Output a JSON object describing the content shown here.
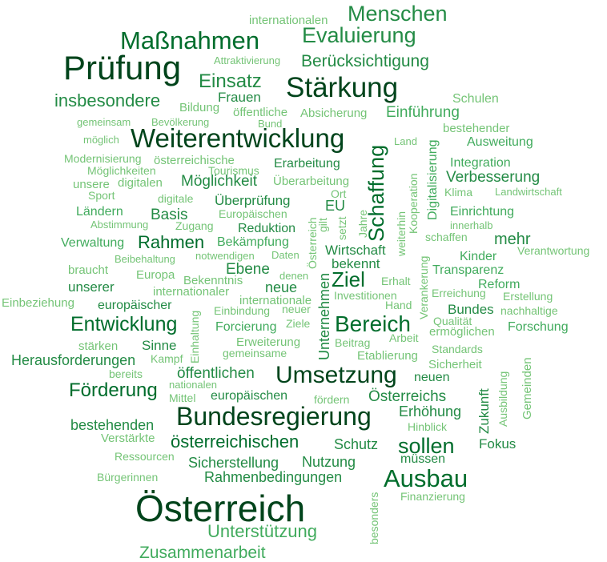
{
  "colors": {
    "c1": "#00441b",
    "c2": "#006d2c",
    "c3": "#238b45",
    "c4": "#41ab5d",
    "c5": "#74c476"
  },
  "words": [
    {
      "text": "Österreich",
      "c": "c1"
    },
    {
      "text": "Prüfung",
      "c": "c1"
    },
    {
      "text": "Bundesregierung",
      "c": "c1"
    },
    {
      "text": "Stärkung",
      "c": "c1"
    },
    {
      "text": "Weiterentwicklung",
      "c": "c1"
    },
    {
      "text": "Umsetzung",
      "c": "c1"
    },
    {
      "text": "Maßnahmen",
      "c": "c2"
    },
    {
      "text": "Ausbau",
      "c": "c2"
    },
    {
      "text": "Bereich",
      "c": "c2"
    },
    {
      "text": "Schaffung",
      "c": "c2"
    },
    {
      "text": "Entwicklung",
      "c": "c2"
    },
    {
      "text": "Förderung",
      "c": "c2"
    },
    {
      "text": "sollen",
      "c": "c2"
    },
    {
      "text": "Menschen",
      "c": "c3"
    },
    {
      "text": "Evaluierung",
      "c": "c3"
    },
    {
      "text": "Einsatz",
      "c": "c3"
    },
    {
      "text": "Berücksichtigung",
      "c": "c3"
    },
    {
      "text": "insbesondere",
      "c": "c3"
    },
    {
      "text": "österreichischen",
      "c": "c2"
    },
    {
      "text": "Rahmen",
      "c": "c2"
    },
    {
      "text": "Ziel",
      "c": "c2"
    },
    {
      "text": "Unterstützung",
      "c": "c4"
    },
    {
      "text": "Zusammenarbeit",
      "c": "c4"
    },
    {
      "text": "Möglichkeit",
      "c": "c3"
    },
    {
      "text": "Einführung",
      "c": "c4"
    },
    {
      "text": "mehr",
      "c": "c3"
    },
    {
      "text": "Digitalisierung",
      "c": "c4"
    },
    {
      "text": "Verbesserung",
      "c": "c3"
    },
    {
      "text": "Rahmenbedingungen",
      "c": "c3"
    },
    {
      "text": "Sicherstellung",
      "c": "c3"
    },
    {
      "text": "Herausforderungen",
      "c": "c3"
    },
    {
      "text": "öffentlichen",
      "c": "c3"
    },
    {
      "text": "Basis",
      "c": "c3"
    },
    {
      "text": "Ebene",
      "c": "c3"
    },
    {
      "text": "Unternehmen",
      "c": "c3"
    },
    {
      "text": "Österreichs",
      "c": "c3"
    },
    {
      "text": "Nutzung",
      "c": "c3"
    },
    {
      "text": "Schutz",
      "c": "c3"
    },
    {
      "text": "Erhöhung",
      "c": "c3"
    },
    {
      "text": "Zukunft",
      "c": "c3"
    },
    {
      "text": "neue",
      "c": "c3"
    },
    {
      "text": "europäischen",
      "c": "c3"
    },
    {
      "text": "bestehenden",
      "c": "c3"
    },
    {
      "text": "Frauen",
      "c": "c3"
    },
    {
      "text": "Erarbeitung",
      "c": "c3"
    },
    {
      "text": "Überprüfung",
      "c": "c3"
    },
    {
      "text": "Wirtschaft",
      "c": "c3"
    },
    {
      "text": "bekennt",
      "c": "c3"
    },
    {
      "text": "Reduktion",
      "c": "c3"
    },
    {
      "text": "Bekämpfung",
      "c": "c4"
    },
    {
      "text": "unserer",
      "c": "c3"
    },
    {
      "text": "europäischer",
      "c": "c3"
    },
    {
      "text": "Sinne",
      "c": "c3"
    },
    {
      "text": "neuen",
      "c": "c3"
    },
    {
      "text": "Fokus",
      "c": "c3"
    },
    {
      "text": "Bundes",
      "c": "c3"
    },
    {
      "text": "EU",
      "c": "c3"
    },
    {
      "text": "müssen",
      "c": "c3"
    },
    {
      "text": "Ländern",
      "c": "c4"
    },
    {
      "text": "Verwaltung",
      "c": "c4"
    },
    {
      "text": "Forcierung",
      "c": "c4"
    },
    {
      "text": "Kinder",
      "c": "c4"
    },
    {
      "text": "Transparenz",
      "c": "c4"
    },
    {
      "text": "Reform",
      "c": "c4"
    },
    {
      "text": "Forschung",
      "c": "c4"
    },
    {
      "text": "Einrichtung",
      "c": "c4"
    },
    {
      "text": "Ausweitung",
      "c": "c4"
    },
    {
      "text": "Integration",
      "c": "c4"
    },
    {
      "text": "Schulen",
      "c": "c5"
    },
    {
      "text": "bestehender",
      "c": "c5"
    },
    {
      "text": "Bildung",
      "c": "c5"
    },
    {
      "text": "öffentliche",
      "c": "c5"
    },
    {
      "text": "Absicherung",
      "c": "c5"
    },
    {
      "text": "Bund",
      "c": "c5"
    },
    {
      "text": "Bevölkerung",
      "c": "c5"
    },
    {
      "text": "gemeinsam",
      "c": "c5"
    },
    {
      "text": "möglich",
      "c": "c5"
    },
    {
      "text": "Land",
      "c": "c5"
    },
    {
      "text": "Modernisierung",
      "c": "c5"
    },
    {
      "text": "österreichische",
      "c": "c5"
    },
    {
      "text": "Möglichkeiten",
      "c": "c5"
    },
    {
      "text": "Tourismus",
      "c": "c5"
    },
    {
      "text": "unsere",
      "c": "c5"
    },
    {
      "text": "digitalen",
      "c": "c5"
    },
    {
      "text": "Überarbeitung",
      "c": "c5"
    },
    {
      "text": "Sport",
      "c": "c5"
    },
    {
      "text": "digitale",
      "c": "c5"
    },
    {
      "text": "Ort",
      "c": "c5"
    },
    {
      "text": "Klima",
      "c": "c5"
    },
    {
      "text": "Landwirtschaft",
      "c": "c5"
    },
    {
      "text": "Europäischen",
      "c": "c5"
    },
    {
      "text": "Abstimmung",
      "c": "c5"
    },
    {
      "text": "Zugang",
      "c": "c5"
    },
    {
      "text": "innerhalb",
      "c": "c5"
    },
    {
      "text": "schaffen",
      "c": "c5"
    },
    {
      "text": "Beibehaltung",
      "c": "c5"
    },
    {
      "text": "notwendigen",
      "c": "c5"
    },
    {
      "text": "Daten",
      "c": "c5"
    },
    {
      "text": "Verantwortung",
      "c": "c5"
    },
    {
      "text": "braucht",
      "c": "c5"
    },
    {
      "text": "Europa",
      "c": "c5"
    },
    {
      "text": "Bekenntnis",
      "c": "c5"
    },
    {
      "text": "denen",
      "c": "c5"
    },
    {
      "text": "Erhalt",
      "c": "c5"
    },
    {
      "text": "internationaler",
      "c": "c5"
    },
    {
      "text": "internationale",
      "c": "c5"
    },
    {
      "text": "Investitionen",
      "c": "c5"
    },
    {
      "text": "Erreichung",
      "c": "c5"
    },
    {
      "text": "Erstellung",
      "c": "c5"
    },
    {
      "text": "Einbeziehung",
      "c": "c5"
    },
    {
      "text": "Einbindung",
      "c": "c5"
    },
    {
      "text": "neuer",
      "c": "c5"
    },
    {
      "text": "Hand",
      "c": "c5"
    },
    {
      "text": "nachhaltige",
      "c": "c5"
    },
    {
      "text": "Qualität",
      "c": "c5"
    },
    {
      "text": "Ziele",
      "c": "c5"
    },
    {
      "text": "ermöglichen",
      "c": "c5"
    },
    {
      "text": "Arbeit",
      "c": "c5"
    },
    {
      "text": "stärken",
      "c": "c5"
    },
    {
      "text": "Erweiterung",
      "c": "c5"
    },
    {
      "text": "Beitrag",
      "c": "c5"
    },
    {
      "text": "Standards",
      "c": "c5"
    },
    {
      "text": "Kampf",
      "c": "c5"
    },
    {
      "text": "gemeinsame",
      "c": "c5"
    },
    {
      "text": "Etablierung",
      "c": "c5"
    },
    {
      "text": "bereits",
      "c": "c5"
    },
    {
      "text": "Sicherheit",
      "c": "c5"
    },
    {
      "text": "nationalen",
      "c": "c5"
    },
    {
      "text": "Mittel",
      "c": "c5"
    },
    {
      "text": "fördern",
      "c": "c5"
    },
    {
      "text": "Hinblick",
      "c": "c5"
    },
    {
      "text": "Verstärkte",
      "c": "c5"
    },
    {
      "text": "Ressourcen",
      "c": "c5"
    },
    {
      "text": "Bürgerinnen",
      "c": "c5"
    },
    {
      "text": "Finanzierung",
      "c": "c5"
    },
    {
      "text": "internationalen",
      "c": "c5"
    },
    {
      "text": "Attraktivierung",
      "c": "c5"
    },
    {
      "text": "Ausbildung",
      "c": "c5"
    },
    {
      "text": "Gemeinden",
      "c": "c5"
    },
    {
      "text": "Einhaltung",
      "c": "c5"
    },
    {
      "text": "Kooperation",
      "c": "c5"
    },
    {
      "text": "weiterhin",
      "c": "c5"
    },
    {
      "text": "Verankerung",
      "c": "c5"
    },
    {
      "text": "Jahre",
      "c": "c5"
    },
    {
      "text": "setzt",
      "c": "c5"
    },
    {
      "text": "gilt",
      "c": "c5"
    },
    {
      "text": "Österreich",
      "c": "c5"
    },
    {
      "text": "besonders",
      "c": "c5"
    }
  ]
}
